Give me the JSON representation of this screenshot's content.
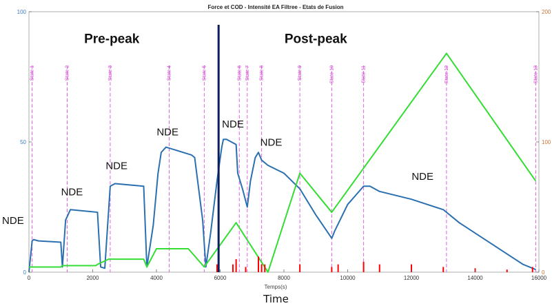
{
  "chart_data": {
    "type": "line",
    "title": "Force et COD - Intensité EA Filtree - Etats de Fusion",
    "xlabel": "Temps(s)",
    "xlim": [
      0,
      16000
    ],
    "ylim": [
      0,
      100
    ],
    "ylim_right": [
      0,
      200
    ],
    "x_ticks": [
      "0",
      "2000",
      "4000",
      "6000",
      "8000",
      "10000",
      "12000",
      "14000",
      "16000"
    ],
    "x_tick_values": [
      0,
      2000,
      4000,
      6000,
      8000,
      10000,
      12000,
      14000,
      16000
    ],
    "y_ticks_left": [
      "0",
      "50",
      "100"
    ],
    "y_tick_values_left": [
      0,
      50,
      100
    ],
    "y_ticks_right": [
      "0",
      "100",
      "200"
    ],
    "y_tick_values_right": [
      0,
      100,
      200
    ],
    "grid": false,
    "series": [
      {
        "color": "#2a6fb0",
        "x": [
          0,
          100,
          150,
          300,
          1000,
          1050,
          1150,
          1300,
          2150,
          2250,
          2380,
          2550,
          2700,
          3600,
          3700,
          3900,
          4050,
          4150,
          4300,
          5100,
          5200,
          5450,
          5550,
          5700,
          5900,
          6050,
          6100,
          6200,
          6500,
          6550,
          6700,
          6850,
          6950,
          7100,
          7200,
          7300,
          7500,
          8000,
          8500,
          9000,
          9500,
          9600,
          10000,
          10500,
          10700,
          11000,
          12000,
          13000,
          13500,
          14000,
          14500,
          15000,
          15500,
          15900
        ],
        "y": [
          0,
          12,
          12.5,
          12,
          11.5,
          2,
          20,
          24,
          23,
          2,
          1.5,
          33,
          34,
          33,
          2,
          18,
          38,
          46,
          48,
          45,
          44,
          20,
          2,
          15,
          35,
          48,
          51,
          51,
          49,
          38,
          32,
          25,
          35,
          44,
          46,
          43,
          41,
          38,
          32,
          22,
          13,
          16,
          26,
          33,
          33,
          31,
          28,
          24,
          19,
          15,
          11,
          7,
          3,
          1
        ]
      },
      {
        "color": "#33dd33",
        "x": [
          0,
          1000,
          1050,
          2100,
          2150,
          2500,
          3600,
          3700,
          4000,
          5000,
          5500,
          6500,
          7500,
          8500,
          9500,
          13100,
          15900
        ],
        "y": [
          2,
          2,
          2.5,
          2.5,
          3,
          5,
          5,
          2,
          9,
          9,
          2,
          19,
          0,
          38,
          23,
          84,
          35
        ]
      },
      {
        "color": "#ff0000",
        "x": [
          5900,
          6400,
          6500,
          6800,
          7200,
          7300,
          7400,
          8500,
          9500,
          9700,
          10500,
          11000,
          12000,
          13000,
          14000,
          15000,
          15800
        ],
        "y": [
          3,
          3,
          5,
          2,
          6,
          3,
          3,
          3,
          2,
          3,
          4,
          3,
          3,
          2,
          1.5,
          1,
          2
        ]
      }
    ],
    "states": [
      {
        "label": "State 1",
        "x": 100
      },
      {
        "label": "State 2",
        "x": 1200
      },
      {
        "label": "State 3",
        "x": 2550
      },
      {
        "label": "State 4",
        "x": 4400
      },
      {
        "label": "State 5",
        "x": 5500
      },
      {
        "label": "State 6",
        "x": 6600
      },
      {
        "label": "State 7",
        "x": 6850
      },
      {
        "label": "State 8",
        "x": 7300
      },
      {
        "label": "State 9",
        "x": 8500
      },
      {
        "label": "State 10",
        "x": 9500
      },
      {
        "label": "State 11",
        "x": 10500
      },
      {
        "label": "State 12",
        "x": 13100
      },
      {
        "label": "State 13",
        "x": 15900
      }
    ],
    "peak_divider_x": 5950,
    "regions": [
      {
        "label": "Pre-peak",
        "x": 2600,
        "y": 88
      },
      {
        "label": "Post-peak",
        "x": 9000,
        "y": 88
      }
    ],
    "annotations": [
      {
        "label": "NDE",
        "x": -500,
        "y": 18.5
      },
      {
        "label": "NDE",
        "x": 1350,
        "y": 29.5
      },
      {
        "label": "NDE",
        "x": 2750,
        "y": 39.5
      },
      {
        "label": "NDE",
        "x": 4350,
        "y": 52.5
      },
      {
        "label": "NDE",
        "x": 6400,
        "y": 55.5
      },
      {
        "label": "NDE",
        "x": 7600,
        "y": 48.5
      },
      {
        "label": "NDE",
        "x": 12350,
        "y": 35.5
      }
    ]
  },
  "caption": "Time"
}
